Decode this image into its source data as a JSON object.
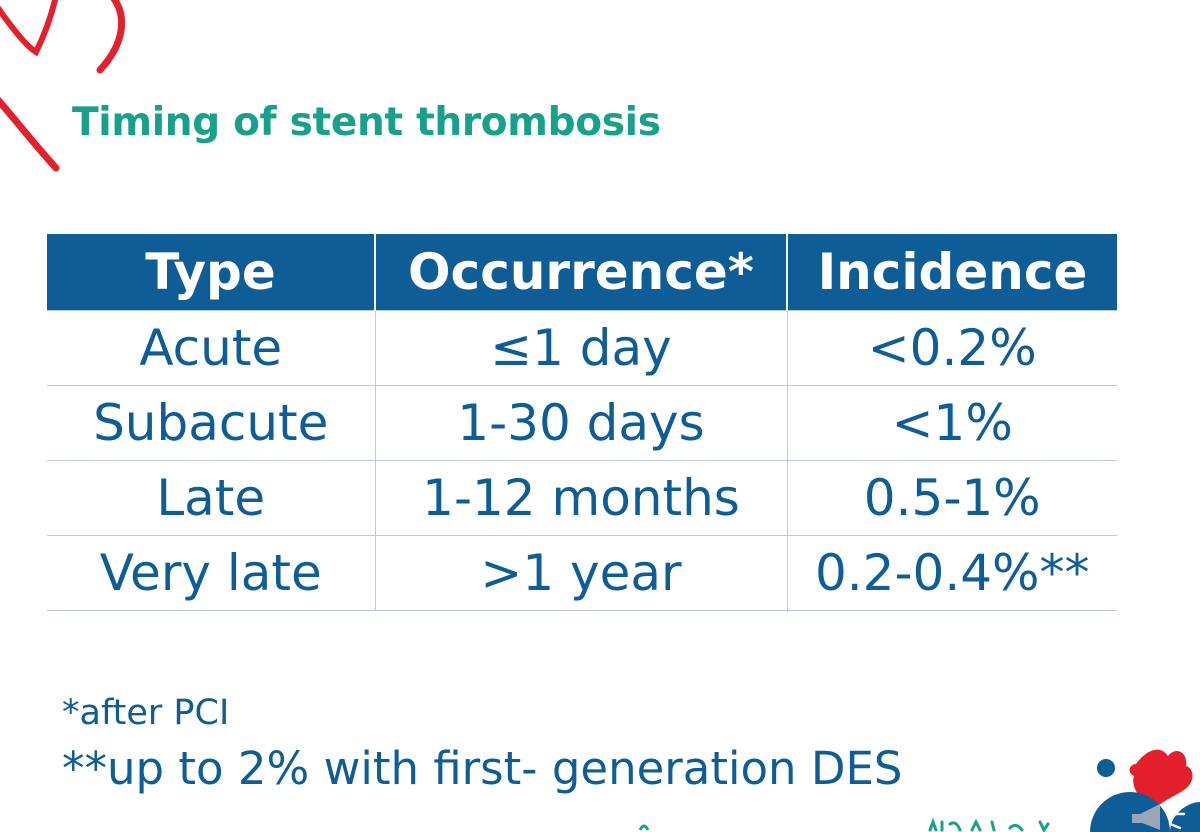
{
  "slide": {
    "title": "Timing of stent thrombosis",
    "table": {
      "headers": [
        "Type",
        "Occurrence*",
        "Incidence"
      ],
      "rows": [
        [
          "Acute",
          "≤1 day",
          "<0.2%"
        ],
        [
          "Subacute",
          "1-30 days",
          "<1%"
        ],
        [
          "Late",
          "1-12 months",
          "0.5-1%"
        ],
        [
          "Very late",
          ">1 year",
          "0.2-0.4%**"
        ]
      ]
    },
    "footnotes": [
      "*after PCI",
      "**up to 2% with first- generation DES"
    ]
  },
  "icons": {
    "logo": "heart-logo-icon",
    "corner": "megaphone-icon"
  },
  "colors": {
    "title": "#17a08a",
    "header_bg": "#0e5d96",
    "cell_text": "#0e5d96",
    "grid": "#b9cbe0",
    "accent_red": "#e3202b"
  }
}
